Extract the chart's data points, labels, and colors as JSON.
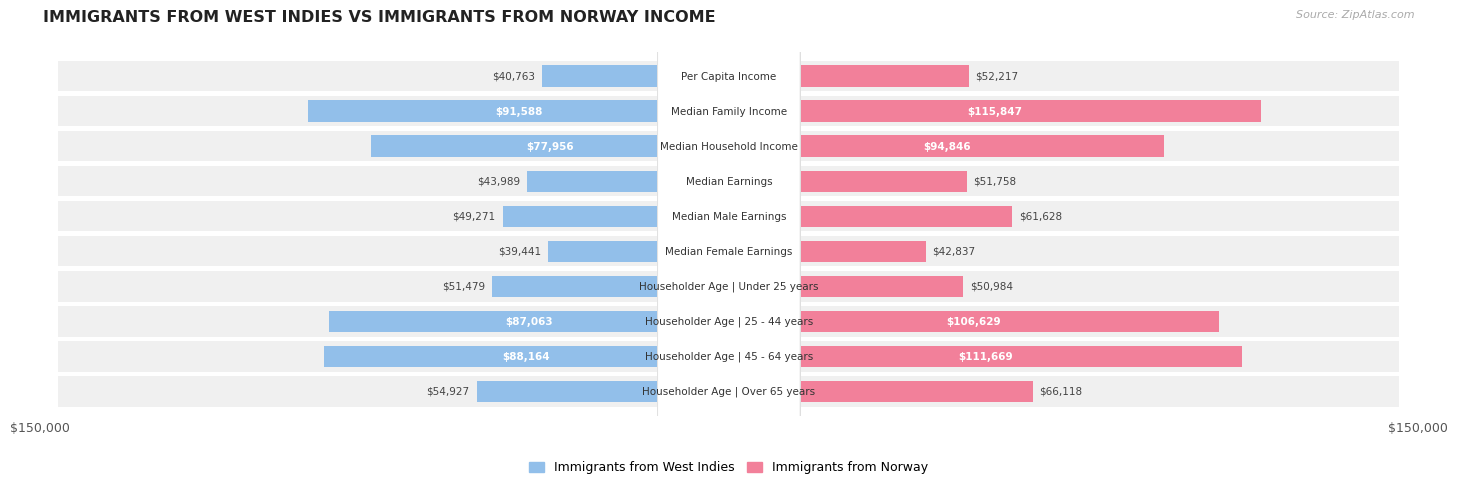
{
  "title": "IMMIGRANTS FROM WEST INDIES VS IMMIGRANTS FROM NORWAY INCOME",
  "source": "Source: ZipAtlas.com",
  "categories": [
    "Per Capita Income",
    "Median Family Income",
    "Median Household Income",
    "Median Earnings",
    "Median Male Earnings",
    "Median Female Earnings",
    "Householder Age | Under 25 years",
    "Householder Age | 25 - 44 years",
    "Householder Age | 45 - 64 years",
    "Householder Age | Over 65 years"
  ],
  "west_indies": [
    40763,
    91588,
    77956,
    43989,
    49271,
    39441,
    51479,
    87063,
    88164,
    54927
  ],
  "norway": [
    52217,
    115847,
    94846,
    51758,
    61628,
    42837,
    50984,
    106629,
    111669,
    66118
  ],
  "max_val": 150000,
  "bar_color_wi": "#92BFEA",
  "bar_color_no": "#F2809A",
  "row_bg": "#F0F0F0",
  "legend_wi_color": "#92BFEA",
  "legend_no_color": "#F2809A",
  "legend_wi_label": "Immigrants from West Indies",
  "legend_no_label": "Immigrants from Norway",
  "wi_inside": [
    91588,
    77956,
    87063,
    88164
  ],
  "no_inside": [
    115847,
    94846,
    106629,
    111669
  ]
}
